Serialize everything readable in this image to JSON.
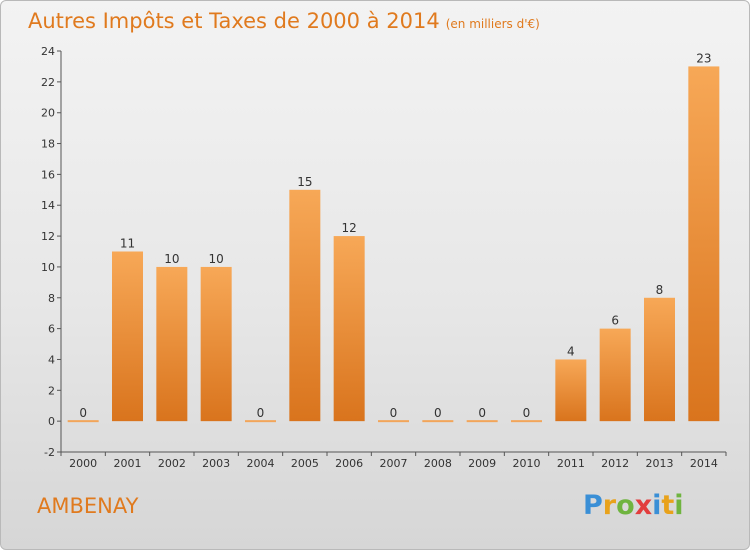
{
  "header": {
    "title": "Autres Impôts et Taxes de 2000 à 2014",
    "unit": "(en milliers d'€)"
  },
  "footer": {
    "commune": "AMBENAY",
    "brand_letters": [
      "P",
      "r",
      "o",
      "x",
      "i",
      "t",
      "i"
    ],
    "brand_colors": [
      "#3a8fd6",
      "#e8a21b",
      "#6fb43f",
      "#e23d3d",
      "#3a8fd6",
      "#e8a21b",
      "#6fb43f"
    ]
  },
  "colors": {
    "accent": "#e07a1e",
    "bar_light": "#f7a857",
    "bar_dark": "#d9741d"
  },
  "chart_data": {
    "type": "bar",
    "categories": [
      "2000",
      "2001",
      "2002",
      "2003",
      "2004",
      "2005",
      "2006",
      "2007",
      "2008",
      "2009",
      "2010",
      "2011",
      "2012",
      "2013",
      "2014"
    ],
    "values": [
      0,
      11,
      10,
      10,
      0,
      15,
      12,
      0,
      0,
      0,
      0,
      4,
      6,
      8,
      23
    ],
    "data_labels": [
      "0",
      "11",
      "10",
      "10",
      "0",
      "15",
      "12",
      "0",
      "0",
      "0",
      "0",
      "4",
      "6",
      "8",
      "23"
    ],
    "title": "Autres Impôts et Taxes de 2000 à 2014",
    "xlabel": "",
    "ylabel": "",
    "ylim": [
      -2,
      24
    ],
    "yticks": [
      "-2",
      "0",
      "2",
      "4",
      "6",
      "8",
      "10",
      "12",
      "14",
      "16",
      "18",
      "20",
      "22",
      "24"
    ],
    "grid": false,
    "legend": "none"
  }
}
